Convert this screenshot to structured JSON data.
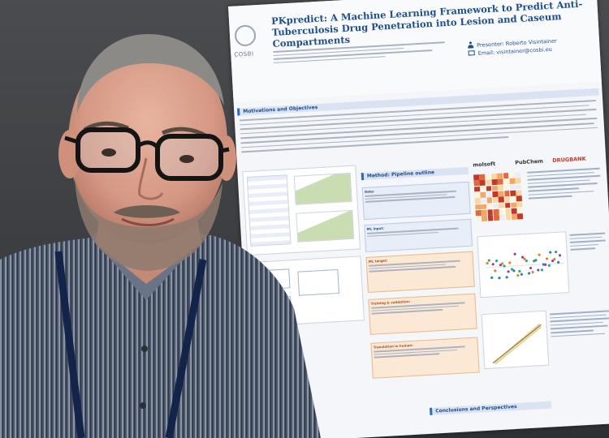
{
  "poster": {
    "title": "PKpredict: A Machine Learning Framework to Predict Anti-Tuberculosis Drug Penetration into Lesion and Caseum Compartments",
    "logo": "COSBI",
    "presenter": "Presenter: Roberto Visintainer",
    "email": "Email: visintainer@cosbi.eu",
    "sections": {
      "motivations": "Motivations and Objectives",
      "method": "Method: Pipeline outline",
      "conclusions": "Conclusions and Perspectives"
    },
    "brands": {
      "molsoft": "molsoft",
      "pubchem": "PubChem",
      "drugbank": "DRUGBANK"
    },
    "pipeline_steps": [
      {
        "label": "Data:"
      },
      {
        "label": "ML input:"
      },
      {
        "label": "ML target:"
      },
      {
        "label": "Training & validation:"
      },
      {
        "label": "Translation in human:"
      }
    ]
  },
  "colors": {
    "poster_bg": "#f4f6f9",
    "title_blue": "#1f4e8c",
    "accent_orange": "#e6b98c",
    "pin_teal": "#1aa58a"
  }
}
